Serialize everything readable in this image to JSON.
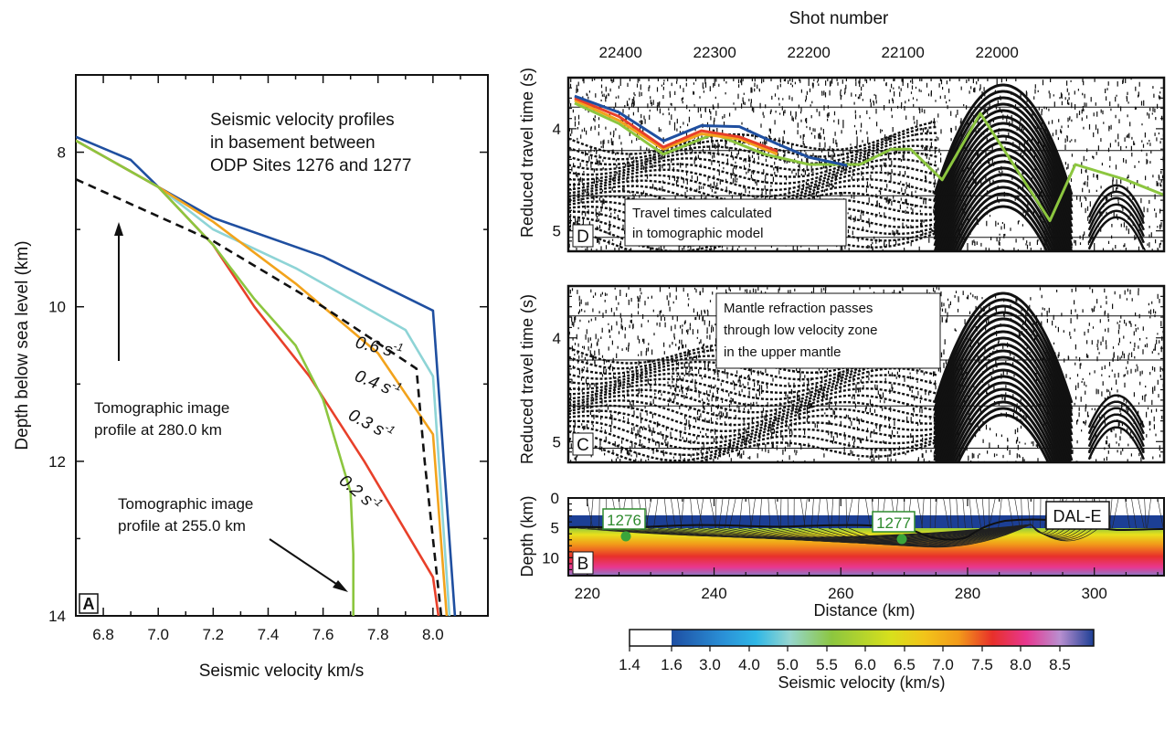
{
  "chart_data": [
    {
      "panel": "A",
      "type": "line",
      "title_lines": [
        "Seismic velocity profiles",
        "in basement between",
        "ODP Sites 1276 and 1277"
      ],
      "xlabel": "Seismic velocity km/s",
      "ylabel": "Depth below sea level (km)",
      "xlim": [
        6.7,
        8.2
      ],
      "ylim": [
        7,
        14
      ],
      "y_inverted": true,
      "xticks": [
        "6.8",
        "7.0",
        "7.2",
        "7.4",
        "7.6",
        "7.8",
        "8.0"
      ],
      "yticks": [
        "8",
        "10",
        "12",
        "14"
      ],
      "series": [
        {
          "label": "0.6 s",
          "color": "#1f4fa0",
          "dash": false,
          "x": [
            6.7,
            6.9,
            7.0,
            7.2,
            7.6,
            8.0,
            8.08
          ],
          "y": [
            7.8,
            8.1,
            8.45,
            8.85,
            9.35,
            10.05,
            14.0
          ]
        },
        {
          "label": "0.4 s",
          "color": "#8ed4d6",
          "dash": false,
          "x": [
            6.7,
            7.0,
            7.2,
            7.5,
            7.9,
            8.0,
            8.06
          ],
          "y": [
            7.85,
            8.45,
            9.0,
            9.5,
            10.3,
            10.9,
            14.0
          ]
        },
        {
          "label": "0.3 s",
          "color": "#f2a31c",
          "dash": false,
          "x": [
            6.7,
            7.0,
            7.2,
            7.5,
            7.8,
            8.0,
            8.05
          ],
          "y": [
            7.85,
            8.45,
            8.9,
            9.7,
            10.6,
            11.65,
            14.0
          ]
        },
        {
          "label": "0.2 s",
          "color": "#e8402a",
          "dash": false,
          "x": [
            6.7,
            7.0,
            7.2,
            7.35,
            7.55,
            7.75,
            8.0,
            8.02
          ],
          "y": [
            7.85,
            8.45,
            9.2,
            10.0,
            10.9,
            12.0,
            13.5,
            14.0
          ]
        },
        {
          "label": "",
          "color": "#8cc63f",
          "dash": false,
          "x": [
            6.7,
            7.0,
            7.2,
            7.35,
            7.5,
            7.6,
            7.7,
            7.71,
            7.71
          ],
          "y": [
            7.85,
            8.45,
            9.2,
            9.9,
            10.5,
            11.2,
            12.4,
            13.2,
            14.0
          ]
        },
        {
          "label": "",
          "color": "#111111",
          "dash": true,
          "x": [
            6.7,
            7.2,
            7.6,
            7.94,
            7.97,
            8.03
          ],
          "y": [
            8.35,
            9.15,
            10.0,
            10.8,
            12.0,
            14.0
          ]
        }
      ],
      "curve_labels": [
        "0.6 s",
        "0.4 s",
        "0.3 s",
        "0.2 s"
      ],
      "exponent": "-1",
      "annotations": [
        {
          "lines": [
            "Tomographic image",
            "profile at 280.0 km"
          ]
        },
        {
          "lines": [
            "Tomographic image",
            "profile at 255.0 km"
          ]
        }
      ]
    },
    {
      "panel": "D",
      "type": "line",
      "top_axis_label": "Shot number",
      "top_ticks": [
        "22400",
        "22300",
        "22200",
        "22100",
        "22000"
      ],
      "ylabel": "Reduced travel time (s)",
      "ylim": [
        3.5,
        5.2
      ],
      "yticks": [
        "4",
        "5"
      ],
      "annotation_lines": [
        "Travel times calculated",
        "in tomographic model"
      ],
      "traces": [
        {
          "color": "#8cc63f",
          "x": [
            218,
            225,
            232,
            240,
            248,
            255,
            263,
            268,
            271,
            276,
            282,
            293,
            297,
            305,
            311
          ],
          "y": [
            3.75,
            3.95,
            4.25,
            4.05,
            4.25,
            4.35,
            4.35,
            4.2,
            4.2,
            4.5,
            3.85,
            4.9,
            4.35,
            4.5,
            4.65
          ]
        },
        {
          "color": "#f2a31c",
          "x": [
            218,
            225,
            232,
            238,
            244,
            250
          ],
          "y": [
            3.72,
            3.92,
            4.2,
            4.05,
            4.1,
            4.25
          ]
        },
        {
          "color": "#e8402a",
          "x": [
            218,
            225,
            232,
            238,
            244,
            250
          ],
          "y": [
            3.7,
            3.88,
            4.18,
            4.02,
            4.08,
            4.22
          ]
        },
        {
          "color": "#1f4fa0",
          "x": [
            218,
            225,
            232,
            238,
            244,
            250,
            255,
            261
          ],
          "y": [
            3.68,
            3.84,
            4.12,
            3.97,
            3.98,
            4.15,
            4.28,
            4.36
          ]
        }
      ]
    },
    {
      "panel": "C",
      "type": "line",
      "ylabel": "Reduced travel time (s)",
      "ylim": [
        3.5,
        5.2
      ],
      "yticks": [
        "4",
        "5"
      ],
      "annotation_lines": [
        "Mantle refraction passes",
        "through low velocity zone",
        "in the upper mantle"
      ]
    },
    {
      "panel": "B",
      "type": "heatmap",
      "xlabel": "Distance (km)",
      "ylabel": "Depth (km)",
      "xlim": [
        217,
        311
      ],
      "ylim": [
        0,
        13
      ],
      "xticks": [
        "220",
        "240",
        "260",
        "280",
        "300"
      ],
      "yticks": [
        "0",
        "5",
        "10"
      ],
      "sites": [
        {
          "label": "1276",
          "x": 230.3
        },
        {
          "label": "1277",
          "x": 269.3
        }
      ],
      "profile_label": "DAL-E",
      "colorbar": {
        "label": "Seismic velocity (km/s)",
        "ticks": [
          "1.4",
          "1.6",
          "3.0",
          "4.0",
          "5.0",
          "5.5",
          "6.0",
          "6.5",
          "7.0",
          "7.5",
          "8.0",
          "8.5"
        ],
        "colors": [
          "#ffffff",
          "#1e4fa3",
          "#2fa7df",
          "#96d6cf",
          "#8cc63f",
          "#e8e01c",
          "#f29a1a",
          "#e8302a",
          "#e8378f",
          "#b98fd0",
          "#1c3f95"
        ]
      }
    }
  ]
}
